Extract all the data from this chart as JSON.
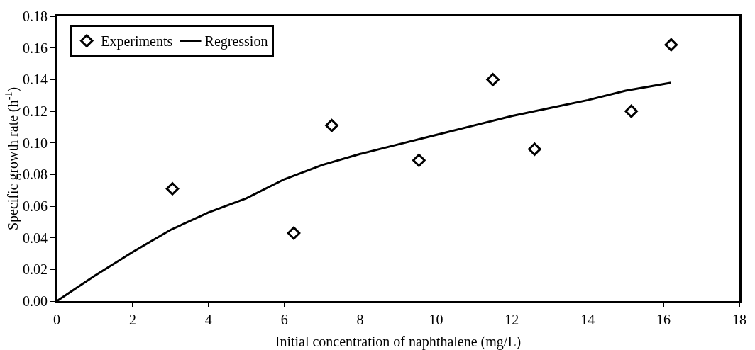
{
  "chart_data": {
    "type": "scatter",
    "xlabel": "Initial concentration of naphthalene (mg/L)",
    "ylabel": "Specific growth rate (h$^{-1}$)",
    "series": [
      {
        "name": "Experiments",
        "marker": "diamond",
        "color": "#000000",
        "x": [
          3.05,
          6.25,
          7.25,
          9.55,
          11.5,
          12.6,
          15.15,
          16.2
        ],
        "values": [
          0.071,
          0.043,
          0.111,
          0.089,
          0.14,
          0.096,
          0.12,
          0.162
        ]
      },
      {
        "name": "Regression",
        "type": "line",
        "line_style": "solid",
        "color": "#000000",
        "x": [
          0,
          1,
          2,
          3,
          4,
          5,
          6,
          7,
          8,
          9,
          10,
          11,
          12,
          13,
          14,
          15,
          16.2
        ],
        "values": [
          0,
          0.016,
          0.031,
          0.045,
          0.056,
          0.065,
          0.077,
          0.086,
          0.093,
          0.099,
          0.105,
          0.111,
          0.117,
          0.122,
          0.127,
          0.133,
          0.138
        ]
      }
    ],
    "xlim": [
      0,
      18
    ],
    "xticks": [
      0,
      2,
      4,
      6,
      8,
      10,
      12,
      14,
      16,
      18
    ],
    "ylim": [
      0,
      0.18
    ],
    "yticks": [
      {
        "value": 0,
        "label": "0.00"
      },
      {
        "value": 0.02,
        "label": "0.02"
      },
      {
        "value": 0.04,
        "label": "0.04"
      },
      {
        "value": 0.06,
        "label": "0.06"
      },
      {
        "value": 0.08,
        "label": "0.08"
      },
      {
        "value": 0.1,
        "label": "0.10"
      },
      {
        "value": 0.12,
        "label": "0.12"
      },
      {
        "value": 0.14,
        "label": "0.14"
      },
      {
        "value": 0.16,
        "label": "0.16"
      },
      {
        "value": 0.18,
        "label": "0.18"
      }
    ],
    "grid": false,
    "legend": "top left"
  }
}
